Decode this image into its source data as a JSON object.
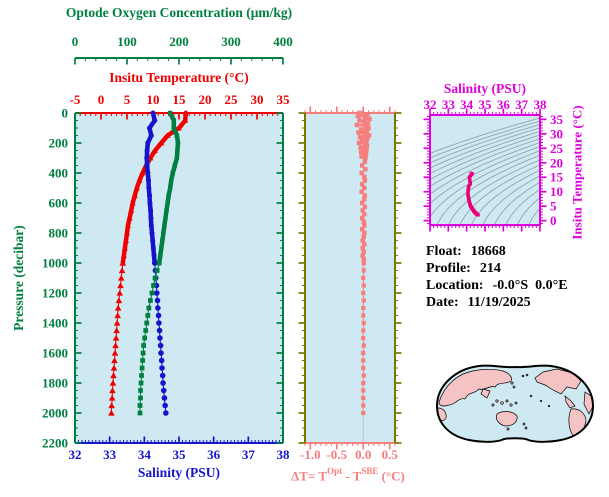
{
  "colors": {
    "green": "#008040",
    "red": "#ee0000",
    "blue": "#1414cc",
    "salmon": "#f87e7e",
    "olive": "#787800",
    "magenta": "#dd00dd",
    "ts_curve": "#e6007a",
    "panel_fill": "#cfe9f2",
    "contour": "#8fa5ad",
    "zero_line": "#c6c6c6",
    "map_land": "#f5c3c3",
    "map_ocean": "#cfe9f2",
    "map_outline": "#000000",
    "text": "#000000"
  },
  "info": {
    "float_label": "Float:",
    "float_value": "18668",
    "profile_label": "Profile:",
    "profile_value": "214",
    "location_label": "Location:",
    "location_value": "-0.0°S  0.0°E",
    "date_label": "Date:",
    "date_value": "11/19/2025"
  },
  "chart_data": [
    {
      "id": "main-profile",
      "type": "line",
      "ylabel": "Pressure (decibar)",
      "ylim": [
        0,
        2200
      ],
      "yticks": [
        0,
        200,
        400,
        600,
        800,
        1000,
        1200,
        1400,
        1600,
        1800,
        2000,
        2200
      ],
      "y_minor": 50,
      "grid": false,
      "oxygen_axis": {
        "label": "Optode Oxygen Concentration (μm/kg)",
        "lim": [
          0,
          400
        ],
        "ticks": [
          0,
          100,
          200,
          300,
          400
        ],
        "minor": 20
      },
      "top_axis": {
        "label": "Insitu Temperature (°C)",
        "lim": [
          -5,
          35
        ],
        "ticks": [
          -5,
          0,
          5,
          10,
          15,
          20,
          25,
          30,
          35
        ],
        "minor": 1
      },
      "bottom_axis": {
        "label": "Salinity (PSU)",
        "lim": [
          32,
          38
        ],
        "ticks": [
          32,
          33,
          34,
          35,
          36,
          37,
          38
        ],
        "minor": 0.1
      },
      "split_pressure": 1000,
      "pressure": [
        0,
        50,
        100,
        150,
        200,
        250,
        300,
        350,
        400,
        450,
        500,
        550,
        600,
        650,
        700,
        750,
        800,
        850,
        900,
        950,
        1000,
        1050,
        1100,
        1150,
        1200,
        1250,
        1300,
        1350,
        1400,
        1450,
        1500,
        1550,
        1600,
        1650,
        1700,
        1750,
        1800,
        1850,
        1900,
        1950,
        2000
      ],
      "series": [
        {
          "name": "temperature",
          "axis": "top_axis",
          "marker": "triangle",
          "color_key": "red",
          "values": [
            16.3,
            16.2,
            15.0,
            12.8,
            11.6,
            10.4,
            9.5,
            8.7,
            8.0,
            7.4,
            6.9,
            6.5,
            6.1,
            5.8,
            5.5,
            5.2,
            5.0,
            4.8,
            4.6,
            4.4,
            4.2,
            4.05,
            3.9,
            3.75,
            3.6,
            3.45,
            3.3,
            3.2,
            3.1,
            3.0,
            2.9,
            2.8,
            2.7,
            2.6,
            2.5,
            2.4,
            2.3,
            2.2,
            2.15,
            2.05,
            2.0
          ]
        },
        {
          "name": "salinity",
          "axis": "bottom_axis",
          "marker": "circle",
          "color_key": "blue",
          "values": [
            34.25,
            34.3,
            34.15,
            34.2,
            34.1,
            34.08,
            34.07,
            34.08,
            34.1,
            34.12,
            34.13,
            34.15,
            34.16,
            34.18,
            34.19,
            34.2,
            34.22,
            34.24,
            34.26,
            34.28,
            34.3,
            34.32,
            34.33,
            34.35,
            34.36,
            34.38,
            34.39,
            34.41,
            34.42,
            34.44,
            34.45,
            34.47,
            34.48,
            34.5,
            34.51,
            34.53,
            34.54,
            34.56,
            34.58,
            34.6,
            34.62
          ]
        },
        {
          "name": "oxygen",
          "axis": "oxygen_axis",
          "marker": "square",
          "color_key": "green",
          "values": [
            183,
            190,
            190,
            196,
            198,
            197,
            196,
            192,
            188,
            185,
            183,
            180,
            178,
            176,
            174,
            172,
            170,
            168,
            166,
            164,
            162,
            158,
            154,
            151,
            148,
            145,
            142,
            140,
            138,
            136,
            134,
            132,
            131,
            130,
            129,
            128,
            127,
            126,
            126,
            125,
            125
          ]
        }
      ]
    },
    {
      "id": "delta-t",
      "type": "scatter",
      "xlabel_parts": {
        "pre": "ΔT= T",
        "sup1": "Opt",
        "mid": " - T",
        "sup2": "SBE",
        "post": " (°C)"
      },
      "xlim": [
        -1.1,
        0.6
      ],
      "xticks": [
        "-1.0",
        "-0.5",
        "0.0",
        "0.5"
      ],
      "x_minor": 0.1,
      "ylim": [
        0,
        2200
      ],
      "y_major": 200,
      "y_minor": 50,
      "split_pressure": 1000,
      "pressure": [
        0,
        10,
        20,
        30,
        40,
        50,
        60,
        70,
        80,
        90,
        100,
        110,
        120,
        130,
        140,
        150,
        160,
        170,
        180,
        190,
        200,
        210,
        220,
        230,
        240,
        250,
        260,
        270,
        280,
        290,
        300,
        325,
        350,
        375,
        400,
        425,
        450,
        475,
        500,
        525,
        550,
        575,
        600,
        625,
        650,
        675,
        700,
        725,
        750,
        775,
        800,
        825,
        850,
        875,
        900,
        925,
        950,
        975,
        1000,
        1050,
        1100,
        1150,
        1200,
        1250,
        1300,
        1350,
        1400,
        1450,
        1500,
        1550,
        1600,
        1650,
        1700,
        1750,
        1800,
        1850,
        1900,
        1950,
        2000
      ],
      "values": [
        -0.05,
        0.08,
        -0.1,
        0.04,
        0.12,
        -0.07,
        0.02,
        0.09,
        -0.12,
        0.05,
        0.1,
        -0.04,
        0.07,
        -0.09,
        0.03,
        0.11,
        -0.06,
        0.08,
        -0.03,
        0.06,
        -0.08,
        0.04,
        0.07,
        -0.05,
        0.02,
        0.06,
        -0.04,
        0.03,
        0.05,
        -0.03,
        0.04,
        0.03,
        -0.02,
        0.04,
        -0.03,
        0.02,
        0.03,
        -0.02,
        0.02,
        -0.03,
        0.03,
        0.02,
        -0.02,
        0.03,
        -0.01,
        0.02,
        -0.02,
        0.01,
        0.02,
        -0.02,
        0.02,
        0.01,
        -0.01,
        0.02,
        -0.01,
        0.01,
        -0.01,
        0.01,
        0.01,
        0.01,
        0.0,
        0.01,
        0.0,
        0.01,
        0.0,
        0.0,
        0.01,
        0.0,
        0.0,
        0.01,
        0.0,
        0.0,
        0.0,
        0.01,
        0.0,
        0.0,
        0.0,
        0.0,
        0.0
      ]
    },
    {
      "id": "ts-diagram",
      "type": "line",
      "top_axis": {
        "label": "Salinity (PSU)",
        "lim": [
          32,
          38
        ],
        "ticks": [
          32,
          33,
          34,
          35,
          36,
          37,
          38
        ],
        "minor": 0.2
      },
      "right_axis": {
        "label": "Insitu Temperature (°C)",
        "lim": [
          -1.5,
          36.5
        ],
        "ticks": [
          0,
          5,
          10,
          15,
          20,
          25,
          30,
          35
        ],
        "minor": 1
      },
      "sigma_contours": [
        21,
        21.5,
        22,
        22.5,
        23,
        23.5,
        24,
        24.5,
        25,
        25.5,
        26,
        26.5,
        27,
        27.5,
        28,
        28.5,
        29,
        29.5,
        30,
        30.5,
        31
      ],
      "source_series": "main-profile"
    }
  ]
}
